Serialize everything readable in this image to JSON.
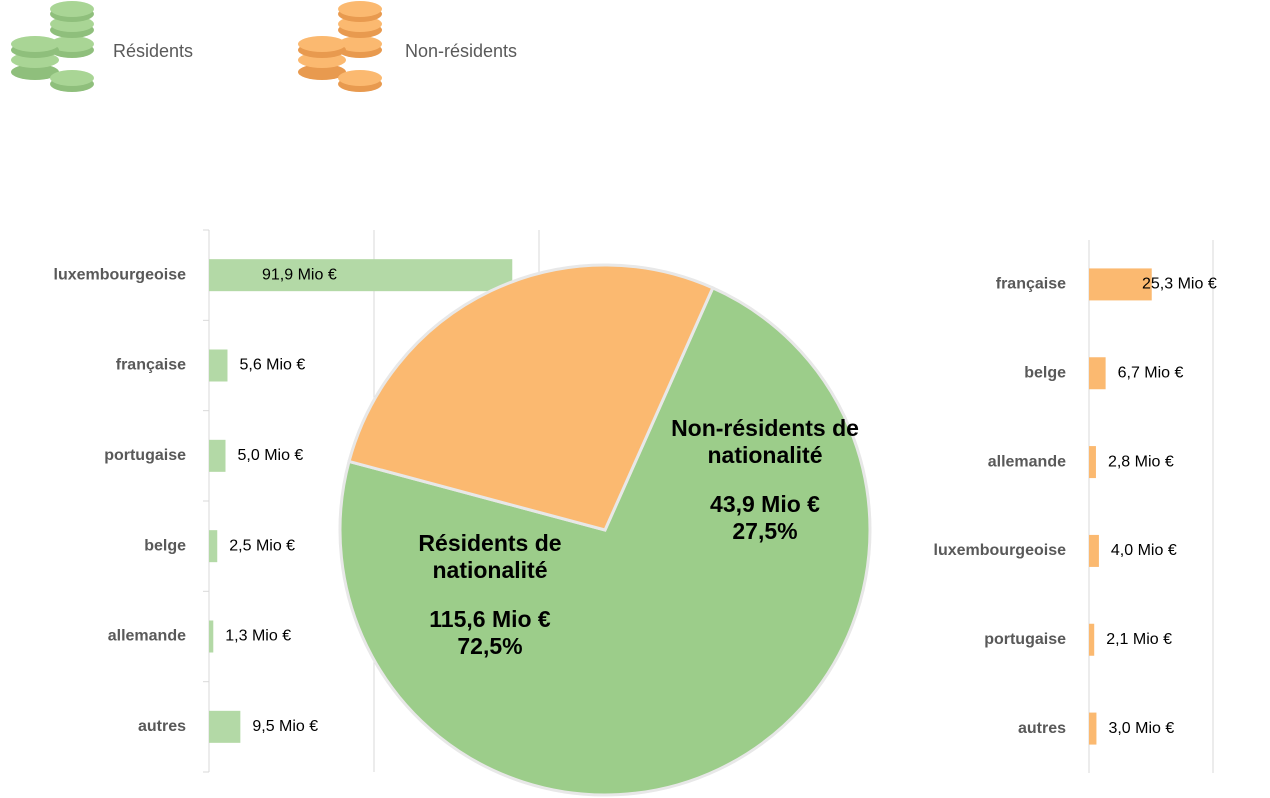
{
  "chart_data": [
    {
      "type": "pie",
      "categories": [
        "Résidents de nationalité",
        "Non-résidents de nationalité"
      ],
      "values": [
        72.5,
        27.5
      ],
      "value_labels": [
        "72,5%",
        "27,5%"
      ],
      "amounts": [
        115.6,
        43.9
      ],
      "amount_labels": [
        "115,6 Mio €",
        "43,9 Mio €"
      ],
      "colors": [
        "#9ccd8a",
        "#fbb970"
      ]
    },
    {
      "type": "barh",
      "name": "Résidents",
      "color": "#b3d9a6",
      "categories": [
        "luxembourgeoise",
        "française",
        "portugaise",
        "belge",
        "allemande",
        "autres"
      ],
      "values": [
        91.9,
        5.6,
        5.0,
        2.5,
        1.3,
        9.5
      ],
      "value_labels": [
        "91,9 Mio €",
        "5,6 Mio €",
        "5,0 Mio €",
        "2,5 Mio €",
        "1,3 Mio €",
        "9,5 Mio €"
      ],
      "xlim": [
        0,
        100
      ],
      "xticks": [
        0,
        50,
        100
      ],
      "grid": true
    },
    {
      "type": "barh",
      "name": "Non-résidents",
      "color": "#fbb970",
      "categories": [
        "française",
        "belge",
        "allemande",
        "luxembourgeoise",
        "portugaise",
        "autres"
      ],
      "values": [
        25.3,
        6.7,
        2.8,
        4.0,
        2.1,
        3.0
      ],
      "value_labels": [
        "25,3 Mio €",
        "6,7 Mio €",
        "2,8 Mio €",
        "4,0 Mio €",
        "2,1 Mio €",
        "3,0 Mio €"
      ],
      "xlim": [
        0,
        50
      ],
      "xticks": [
        0,
        50
      ],
      "grid": true
    }
  ]
}
